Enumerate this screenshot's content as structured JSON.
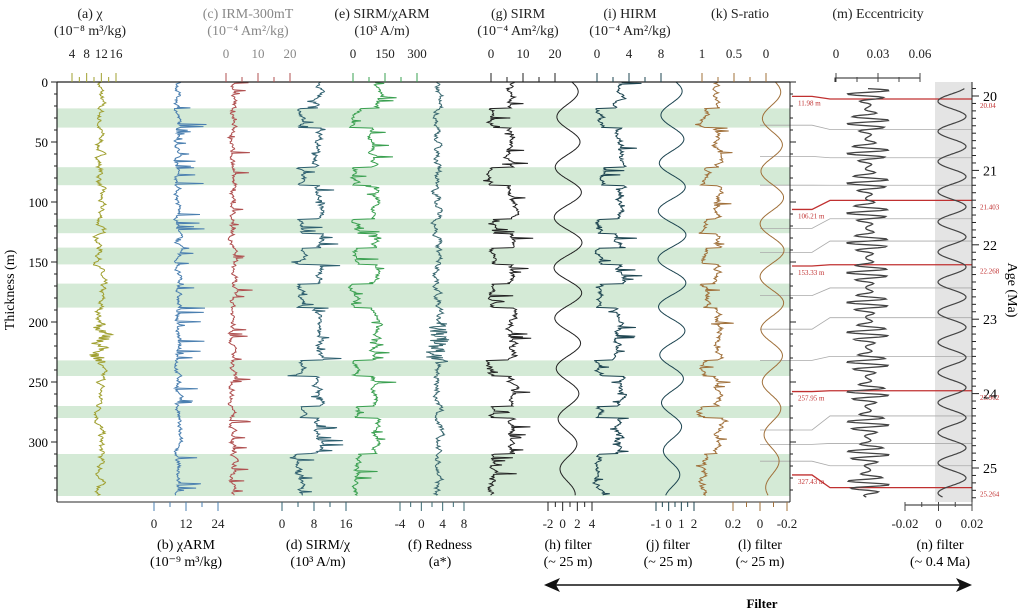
{
  "chart_data": {
    "type": "line",
    "title": "",
    "ylabel": "Thickness (m)",
    "ylim": [
      0,
      345
    ],
    "y_ticks": [
      0,
      50,
      100,
      150,
      200,
      250,
      300
    ],
    "right_axis": {
      "label": "Age (Ma)",
      "ticks": [
        20,
        21,
        22,
        23,
        24,
        25
      ],
      "range": [
        19.8,
        25.4
      ]
    },
    "highlight_bands_m": [
      [
        22,
        38
      ],
      [
        71,
        86
      ],
      [
        114,
        126
      ],
      [
        138,
        152
      ],
      [
        168,
        188
      ],
      [
        232,
        245
      ],
      [
        270,
        280
      ],
      [
        310,
        345
      ]
    ],
    "band_color": "#d4ead6",
    "panels": [
      {
        "id": "a",
        "title": "(a) χ",
        "unit": "(10⁻⁸ m³/kg)",
        "axis": "top",
        "ticks": [
          "4",
          "8",
          "12",
          "16"
        ],
        "color": "#a0a030"
      },
      {
        "id": "b",
        "title": "(b) χARM",
        "unit": "(10⁻⁹ m³/kg)",
        "axis": "bottom",
        "ticks": [
          "0",
          "12",
          "24"
        ],
        "color": "#4a7fb0"
      },
      {
        "id": "c",
        "title": "(c) IRM-300mT",
        "unit": "(10⁻⁴ Am²/kg)",
        "axis": "top",
        "ticks": [
          "0",
          "10",
          "20"
        ],
        "color": "#b05050",
        "label_color": "#888888"
      },
      {
        "id": "d",
        "title": "(d) SIRM/χ",
        "unit": "(10³ A/m)",
        "axis": "bottom",
        "ticks": [
          "0",
          "8",
          "16"
        ],
        "color": "#2f6070"
      },
      {
        "id": "e",
        "title": "(e) SIRM/χARM",
        "unit": "(10³ A/m)",
        "axis": "top",
        "ticks": [
          "0",
          "150",
          "300"
        ],
        "color": "#3aa050"
      },
      {
        "id": "f",
        "title": "(f) Redness",
        "unit": "(a*)",
        "axis": "bottom",
        "ticks": [
          "-4",
          "0",
          "4",
          "8"
        ],
        "color": "#3a6870"
      },
      {
        "id": "g",
        "title": "(g) SIRM",
        "unit": "(10⁻⁴ Am²/kg)",
        "axis": "top",
        "ticks": [
          "0",
          "10",
          "20"
        ],
        "color": "#222222"
      },
      {
        "id": "h",
        "title": "(h) filter",
        "unit": "(~ 25 m)",
        "axis": "bottom",
        "ticks": [
          "-2",
          "0",
          "2",
          "4"
        ],
        "color": "#222222"
      },
      {
        "id": "i",
        "title": "(i) HIRM",
        "unit": "(10⁻⁴ Am²/kg)",
        "axis": "top",
        "ticks": [
          "0",
          "4",
          "8"
        ],
        "color": "#1c4450"
      },
      {
        "id": "j",
        "title": "(j) filter",
        "unit": "(~ 25 m)",
        "axis": "bottom",
        "ticks": [
          "-1",
          "0",
          "1",
          "2"
        ],
        "color": "#1c4450"
      },
      {
        "id": "k",
        "title": "(k) S-ratio",
        "unit": "",
        "axis": "top",
        "ticks": [
          "1",
          "0.5",
          "0"
        ],
        "color": "#a0703a"
      },
      {
        "id": "l",
        "title": "(l) filter",
        "unit": "(~ 25 m)",
        "axis": "bottom",
        "ticks": [
          "0.2",
          "0",
          "-0.2"
        ],
        "color": "#a0703a"
      },
      {
        "id": "m",
        "title": "(m) Eccentricity",
        "unit": "",
        "axis": "top",
        "ticks": [
          "0",
          "0.03",
          "0.06"
        ],
        "color": "#444444"
      },
      {
        "id": "n",
        "title": "(n) filter",
        "unit": "(~ 0.4 Ma)",
        "axis": "bottom",
        "ticks": [
          "-0.02",
          "0",
          "0.02"
        ],
        "color": "#444444"
      }
    ],
    "tie_points": [
      {
        "depth_label": "11.98 m",
        "depth": 11.98,
        "age_label": "20.04",
        "age": 20.04
      },
      {
        "depth_label": "106.21 m",
        "depth": 106.21,
        "age_label": "21.403",
        "age": 21.403
      },
      {
        "depth_label": "153.33 m",
        "depth": 153.33,
        "age_label": "22.268",
        "age": 22.268
      },
      {
        "depth_label": "257.95 m",
        "depth": 257.95,
        "age_label": "23.962",
        "age": 23.962
      },
      {
        "depth_label": "327.43 m",
        "depth": 327.43,
        "age_label": "25.264",
        "age": 25.264
      }
    ],
    "tie_color": "#c03030",
    "filter_arrow_label": "Filter"
  }
}
